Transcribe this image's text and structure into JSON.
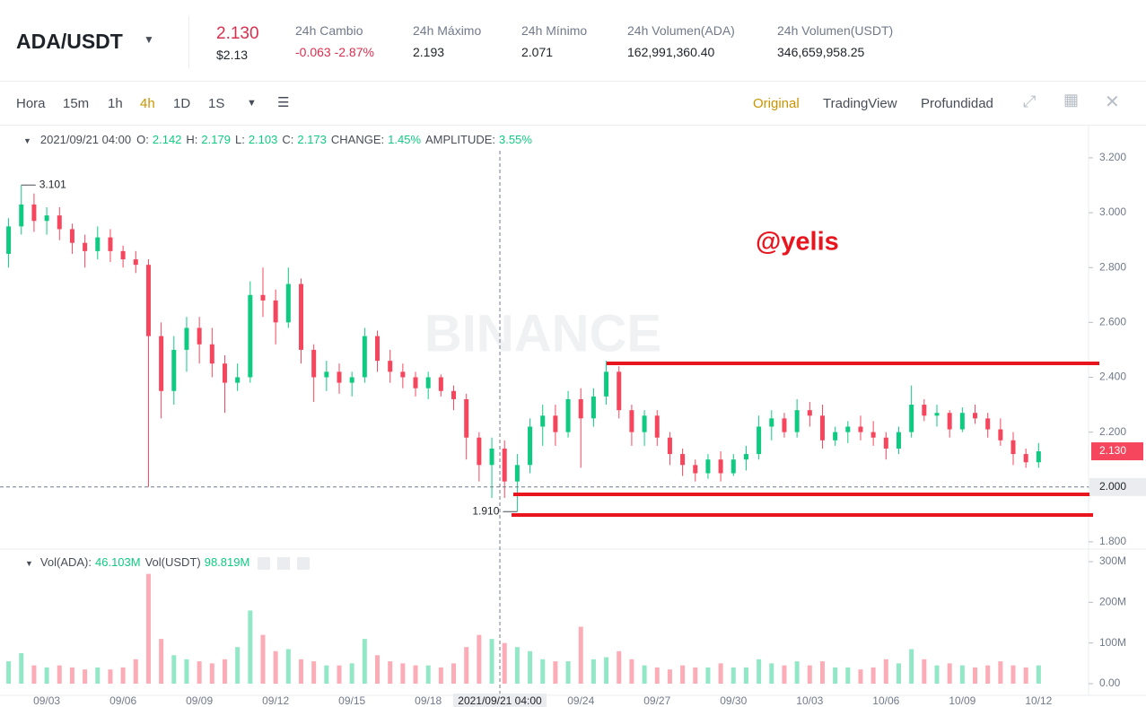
{
  "header": {
    "pair": "ADA/USDT",
    "price": "2.130",
    "price_usd": "$2.13",
    "stats": [
      {
        "label": "24h Cambio",
        "value": "-0.063 -2.87%"
      },
      {
        "label": "24h Máximo",
        "value": "2.193"
      },
      {
        "label": "24h Mínimo",
        "value": "2.071"
      },
      {
        "label": "24h Volumen(ADA)",
        "value": "162,991,360.40"
      },
      {
        "label": "24h Volumen(USDT)",
        "value": "346,659,958.25"
      }
    ]
  },
  "toolbar": {
    "intervals": [
      "Hora",
      "15m",
      "1h",
      "4h",
      "1D",
      "1S"
    ],
    "views": [
      "Original",
      "TradingView",
      "Profundidad"
    ]
  },
  "info_bar": {
    "time": "2021/09/21 04:00",
    "items": [
      {
        "label": "O:",
        "value": "2.142"
      },
      {
        "label": "H:",
        "value": "2.179"
      },
      {
        "label": "L:",
        "value": "2.103"
      },
      {
        "label": "C:",
        "value": "2.173"
      },
      {
        "label": "CHANGE:",
        "value": "1.45%"
      },
      {
        "label": "AMPLITUDE:",
        "value": "3.55%"
      }
    ]
  },
  "volume_bar": {
    "items": [
      {
        "label": "Vol(ADA):",
        "value": "46.103M"
      },
      {
        "label": "Vol(USDT)",
        "value": "98.819M"
      }
    ]
  },
  "watermark": "BINANCE",
  "annotation": "@yelis",
  "chart_data": {
    "type": "candlestick",
    "categories": [
      null,
      null,
      null,
      "09/03",
      null,
      null,
      null,
      null,
      null,
      "09/06",
      null,
      null,
      null,
      null,
      null,
      "09/09",
      null,
      null,
      null,
      null,
      null,
      "09/12",
      null,
      null,
      null,
      null,
      null,
      "09/15",
      null,
      null,
      null,
      null,
      null,
      "09/18",
      null,
      null,
      null,
      null,
      null,
      null,
      null,
      null,
      null,
      null,
      null,
      "09/24",
      null,
      null,
      null,
      null,
      null,
      "09/27",
      null,
      null,
      null,
      null,
      null,
      "09/30",
      null,
      null,
      null,
      null,
      null,
      "10/03",
      null,
      null,
      null,
      null,
      null,
      "10/06",
      null,
      null,
      null,
      null,
      null,
      "10/09",
      null,
      null,
      null,
      null,
      null,
      "10/12"
    ],
    "open": [
      2.85,
      2.95,
      3.03,
      2.97,
      2.99,
      2.94,
      2.89,
      2.86,
      2.91,
      2.86,
      2.83,
      2.81,
      2.55,
      2.35,
      2.5,
      2.58,
      2.52,
      2.45,
      2.38,
      2.4,
      2.7,
      2.68,
      2.6,
      2.74,
      2.5,
      2.4,
      2.42,
      2.38,
      2.4,
      2.55,
      2.46,
      2.42,
      2.4,
      2.36,
      2.4,
      2.35,
      2.32,
      2.18,
      2.08,
      2.14,
      2.02,
      2.08,
      2.22,
      2.26,
      2.2,
      2.32,
      2.25,
      2.33,
      2.42,
      2.28,
      2.2,
      2.26,
      2.18,
      2.12,
      2.08,
      2.05,
      2.1,
      2.05,
      2.1,
      2.12,
      2.22,
      2.25,
      2.2,
      2.28,
      2.26,
      2.17,
      2.2,
      2.22,
      2.2,
      2.18,
      2.14,
      2.2,
      2.3,
      2.26,
      2.27,
      2.21,
      2.27,
      2.25,
      2.21,
      2.17,
      2.12,
      2.09
    ],
    "high": [
      2.98,
      3.101,
      3.07,
      3.02,
      3.02,
      2.96,
      2.92,
      2.95,
      2.94,
      2.88,
      2.86,
      2.83,
      2.6,
      2.55,
      2.62,
      2.62,
      2.58,
      2.48,
      2.45,
      2.75,
      2.8,
      2.72,
      2.8,
      2.76,
      2.52,
      2.46,
      2.45,
      2.42,
      2.58,
      2.57,
      2.5,
      2.45,
      2.42,
      2.42,
      2.41,
      2.37,
      2.34,
      2.2,
      2.18,
      2.17,
      2.12,
      2.25,
      2.3,
      2.3,
      2.35,
      2.36,
      2.36,
      2.46,
      2.44,
      2.3,
      2.28,
      2.28,
      2.2,
      2.14,
      2.1,
      2.12,
      2.13,
      2.12,
      2.15,
      2.26,
      2.28,
      2.27,
      2.32,
      2.31,
      2.3,
      2.22,
      2.24,
      2.26,
      2.24,
      2.2,
      2.22,
      2.37,
      2.32,
      2.3,
      2.28,
      2.29,
      2.3,
      2.27,
      2.25,
      2.2,
      2.14,
      2.16
    ],
    "low": [
      2.8,
      2.92,
      2.93,
      2.92,
      2.9,
      2.85,
      2.8,
      2.83,
      2.82,
      2.8,
      2.78,
      2.0,
      2.25,
      2.3,
      2.42,
      2.45,
      2.4,
      2.27,
      2.35,
      2.38,
      2.62,
      2.52,
      2.58,
      2.45,
      2.31,
      2.35,
      2.34,
      2.33,
      2.38,
      2.42,
      2.38,
      2.36,
      2.33,
      2.32,
      2.33,
      2.28,
      2.1,
      2.02,
      1.96,
      1.96,
      1.91,
      2.05,
      2.15,
      2.15,
      2.18,
      2.07,
      2.22,
      2.3,
      2.25,
      2.15,
      2.15,
      2.15,
      2.08,
      2.04,
      2.02,
      2.03,
      2.02,
      2.04,
      2.06,
      2.1,
      2.17,
      2.18,
      2.18,
      2.22,
      2.14,
      2.15,
      2.16,
      2.17,
      2.15,
      2.1,
      2.12,
      2.18,
      2.24,
      2.22,
      2.18,
      2.2,
      2.23,
      2.18,
      2.15,
      2.08,
      2.07,
      2.07
    ],
    "close": [
      2.95,
      3.03,
      2.97,
      2.99,
      2.94,
      2.89,
      2.86,
      2.91,
      2.86,
      2.83,
      2.81,
      2.55,
      2.35,
      2.5,
      2.58,
      2.52,
      2.45,
      2.38,
      2.4,
      2.7,
      2.68,
      2.6,
      2.74,
      2.5,
      2.4,
      2.42,
      2.38,
      2.4,
      2.55,
      2.46,
      2.42,
      2.4,
      2.36,
      2.4,
      2.35,
      2.32,
      2.18,
      2.08,
      2.14,
      2.02,
      2.08,
      2.22,
      2.26,
      2.2,
      2.32,
      2.25,
      2.33,
      2.42,
      2.28,
      2.2,
      2.26,
      2.18,
      2.12,
      2.08,
      2.05,
      2.1,
      2.05,
      2.1,
      2.12,
      2.22,
      2.25,
      2.2,
      2.28,
      2.26,
      2.17,
      2.2,
      2.22,
      2.2,
      2.18,
      2.14,
      2.2,
      2.3,
      2.26,
      2.27,
      2.21,
      2.27,
      2.25,
      2.21,
      2.17,
      2.12,
      2.09,
      2.13
    ],
    "volume": [
      55,
      75,
      45,
      40,
      45,
      40,
      35,
      40,
      35,
      40,
      60,
      270,
      110,
      70,
      60,
      55,
      50,
      60,
      90,
      180,
      120,
      80,
      85,
      60,
      55,
      45,
      45,
      50,
      110,
      70,
      55,
      50,
      45,
      45,
      40,
      50,
      90,
      120,
      110,
      100,
      90,
      80,
      60,
      55,
      55,
      140,
      60,
      65,
      80,
      60,
      45,
      40,
      35,
      45,
      40,
      40,
      50,
      40,
      40,
      60,
      50,
      45,
      55,
      45,
      55,
      40,
      40,
      35,
      40,
      60,
      50,
      85,
      60,
      45,
      50,
      45,
      40,
      45,
      55,
      45,
      40,
      45
    ],
    "up_color": "#0ecb81",
    "down_color": "#f6465d",
    "ylim": [
      1.78,
      3.311
    ],
    "yticks": [
      {
        "value": 1.8,
        "label": "1.800"
      },
      {
        "value": 2.0,
        "label": "2.000"
      },
      {
        "value": 2.2,
        "label": "2.200"
      },
      {
        "value": 2.4,
        "label": "2.400"
      },
      {
        "value": 2.6,
        "label": "2.600"
      },
      {
        "value": 2.8,
        "label": "2.800"
      },
      {
        "value": 3.0,
        "label": "3.000"
      },
      {
        "value": 3.2,
        "label": "3.200"
      }
    ],
    "volume_ylim": [
      -17.6,
      324.3
    ],
    "volume_yticks": [
      {
        "value": 0,
        "label": "0.00"
      },
      {
        "value": 100,
        "label": "100M"
      },
      {
        "value": 200,
        "label": "200M"
      },
      {
        "value": 300,
        "label": "300M"
      }
    ],
    "high_marker": {
      "value": 3.101,
      "label": "3.101"
    },
    "low_marker": {
      "value": 1.91,
      "label": "1.910"
    },
    "last_price": {
      "value": 2.13,
      "label": "2.130"
    },
    "crosshair": {
      "price": {
        "value": 2.0,
        "label": "2.000"
      },
      "time": "2021/09/21 04:00"
    }
  }
}
